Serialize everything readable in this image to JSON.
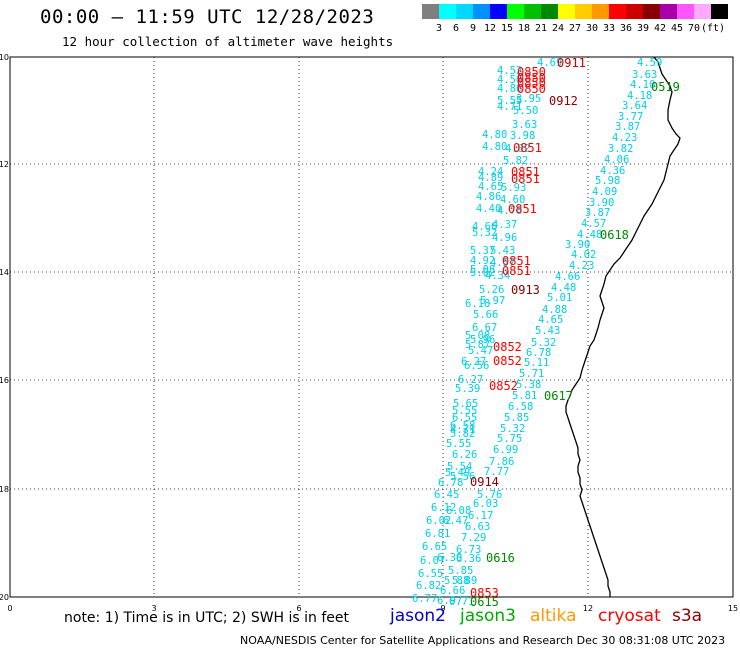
{
  "header": {
    "title": "00:00 – 11:59 UTC 12/28/2023",
    "subtitle": "12 hour collection of altimeter wave heights"
  },
  "legend": {
    "swatches": [
      {
        "color": "#7f7f7f",
        "label": ""
      },
      {
        "color": "#00ffff",
        "label": "3"
      },
      {
        "color": "#00d8ff",
        "label": "6"
      },
      {
        "color": "#0090ff",
        "label": "9"
      },
      {
        "color": "#0000ff",
        "label": "12"
      },
      {
        "color": "#00ff00",
        "label": "15"
      },
      {
        "color": "#00c000",
        "label": "18"
      },
      {
        "color": "#008800",
        "label": "21"
      },
      {
        "color": "#ffff00",
        "label": "24"
      },
      {
        "color": "#ffcc00",
        "label": "27"
      },
      {
        "color": "#ff9900",
        "label": "30"
      },
      {
        "color": "#ff0000",
        "label": "33"
      },
      {
        "color": "#cc0000",
        "label": "36"
      },
      {
        "color": "#880000",
        "label": "39"
      },
      {
        "color": "#aa00aa",
        "label": "42"
      },
      {
        "color": "#ff55ff",
        "label": "45"
      },
      {
        "color": "#ffaaff",
        "label": "70"
      },
      {
        "color": "#000000",
        "label": "(ft)"
      }
    ]
  },
  "axes": {
    "lat_labels": [
      "-10",
      "-12",
      "-14",
      "-16",
      "-18",
      "-20"
    ],
    "lon_labels": [
      "0",
      "3",
      "6",
      "9",
      "12",
      "15"
    ]
  },
  "map_labels": {
    "waves": [
      [
        "4.69",
        537,
        58
      ],
      [
        "4.59",
        637,
        58
      ],
      [
        "4.52",
        497,
        66
      ],
      [
        "3.63",
        632,
        70
      ],
      [
        "4.50",
        497,
        75
      ],
      [
        "4.10",
        630,
        80
      ],
      [
        "4.86",
        497,
        84
      ],
      [
        "4.18",
        627,
        91
      ],
      [
        "5.55",
        497,
        96
      ],
      [
        "3.95",
        516,
        94
      ],
      [
        "3.64",
        622,
        101
      ],
      [
        "4.71",
        497,
        102
      ],
      [
        "5.50",
        513,
        106
      ],
      [
        "3.77",
        618,
        112
      ],
      [
        "3.63",
        512,
        120
      ],
      [
        "3.87",
        615,
        122
      ],
      [
        "4.80",
        482,
        130
      ],
      [
        "3.98",
        510,
        131
      ],
      [
        "4.23",
        612,
        133
      ],
      [
        "4.80",
        482,
        142
      ],
      [
        "4.82",
        505,
        144
      ],
      [
        "3.82",
        608,
        144
      ],
      [
        "5.82",
        503,
        156
      ],
      [
        "4.06",
        604,
        155
      ],
      [
        "4.24",
        478,
        167
      ],
      [
        "4.36",
        600,
        166
      ],
      [
        "4.89",
        478,
        173
      ],
      [
        "5.98",
        595,
        176
      ],
      [
        "4.65",
        478,
        182
      ],
      [
        "5.93",
        501,
        183
      ],
      [
        "4.09",
        592,
        187
      ],
      [
        "4.86",
        476,
        192
      ],
      [
        "4.60",
        500,
        195
      ],
      [
        "3.90",
        589,
        198
      ],
      [
        "4.40",
        476,
        204
      ],
      [
        "4.78",
        497,
        206
      ],
      [
        "3.87",
        585,
        208
      ],
      [
        "4.37",
        492,
        220
      ],
      [
        "4.57",
        581,
        219
      ],
      [
        "4.66",
        472,
        222
      ],
      [
        "5.32",
        472,
        228
      ],
      [
        "4.96",
        492,
        233
      ],
      [
        "4.48",
        577,
        230
      ],
      [
        "4.02",
        571,
        250
      ],
      [
        "3.90",
        565,
        240
      ],
      [
        "5.37",
        470,
        246
      ],
      [
        "5.43",
        490,
        246
      ],
      [
        "4.23",
        569,
        261
      ],
      [
        "4.92",
        470,
        256
      ],
      [
        "4.57",
        490,
        258
      ],
      [
        "5.08",
        470,
        265
      ],
      [
        "5.02",
        470,
        268
      ],
      [
        "4.34",
        485,
        271
      ],
      [
        "4.66",
        555,
        272
      ],
      [
        "5.26",
        479,
        285
      ],
      [
        "4.48",
        551,
        283
      ],
      [
        "5.97",
        480,
        296
      ],
      [
        "5.01",
        547,
        293
      ],
      [
        "6.18",
        465,
        299
      ],
      [
        "4.88",
        542,
        305
      ],
      [
        "5.66",
        473,
        310
      ],
      [
        "4.65",
        538,
        315
      ],
      [
        "6.67",
        472,
        323
      ],
      [
        "5.43",
        535,
        326
      ],
      [
        "5.08",
        465,
        331
      ],
      [
        "5.32",
        531,
        338
      ],
      [
        "5.96",
        470,
        335
      ],
      [
        "5.87",
        465,
        340
      ],
      [
        "6.78",
        526,
        348
      ],
      [
        "5.47",
        468,
        346
      ],
      [
        "6.27",
        461,
        357
      ],
      [
        "5.11",
        524,
        358
      ],
      [
        "6.56",
        464,
        361
      ],
      [
        "5.71",
        519,
        369
      ],
      [
        "6.27",
        458,
        375
      ],
      [
        "5.38",
        516,
        380
      ],
      [
        "5.39",
        455,
        384
      ],
      [
        "5.81",
        512,
        391
      ],
      [
        "5.65",
        453,
        399
      ],
      [
        "6.58",
        508,
        402
      ],
      [
        "5.55",
        452,
        406
      ],
      [
        "5.85",
        504,
        413
      ],
      [
        "6.55",
        452,
        413
      ],
      [
        "6.58",
        450,
        421
      ],
      [
        "5.32",
        500,
        424
      ],
      [
        "4.71",
        450,
        425
      ],
      [
        "5.82",
        450,
        429
      ],
      [
        "5.75",
        497,
        434
      ],
      [
        "5.55",
        446,
        439
      ],
      [
        "6.99",
        493,
        445
      ],
      [
        "6.26",
        452,
        450
      ],
      [
        "7.86",
        489,
        457
      ],
      [
        "5.54",
        447,
        462
      ],
      [
        "7.77",
        484,
        467
      ],
      [
        "5.49",
        445,
        468
      ],
      [
        "5.56",
        450,
        472
      ],
      [
        "6.78",
        438,
        478
      ],
      [
        "6.45",
        434,
        490
      ],
      [
        "5.76",
        477,
        490
      ],
      [
        "6.03",
        473,
        499
      ],
      [
        "6.12",
        431,
        503
      ],
      [
        "6.08",
        446,
        506
      ],
      [
        "6.17",
        468,
        511
      ],
      [
        "6.02",
        426,
        516
      ],
      [
        "6.47",
        443,
        516
      ],
      [
        "6.63",
        465,
        522
      ],
      [
        "6.81",
        425,
        529
      ],
      [
        "7.29",
        461,
        533
      ],
      [
        "6.65",
        422,
        542
      ],
      [
        "6.73",
        456,
        545
      ],
      [
        "6.07",
        420,
        556
      ],
      [
        "6.30",
        437,
        553
      ],
      [
        "6.36",
        456,
        554
      ],
      [
        "5.85",
        448,
        566
      ],
      [
        "6.55",
        418,
        569
      ],
      [
        "5.88",
        444,
        576
      ],
      [
        "5.89",
        452,
        576
      ],
      [
        "6.82",
        416,
        581
      ],
      [
        "6.66",
        440,
        586
      ],
      [
        "6.77",
        412,
        594
      ],
      [
        "6.97",
        437,
        596
      ],
      [
        "6.71",
        449,
        597
      ]
    ],
    "passes": [
      [
        "0911",
        557,
        58,
        "#cc0000"
      ],
      [
        "0519",
        651,
        82,
        "#008800"
      ],
      [
        "0850",
        517,
        67,
        "#ff0000"
      ],
      [
        "0850",
        517,
        73,
        "#ff0000"
      ],
      [
        "0850",
        517,
        78,
        "#ff0000"
      ],
      [
        "0850",
        517,
        84,
        "#ff0000"
      ],
      [
        "0912",
        549,
        96,
        "#880000"
      ],
      [
        "0851",
        513,
        143,
        "#ff0000"
      ],
      [
        "0851",
        511,
        167,
        "#ff0000"
      ],
      [
        "0851",
        511,
        174,
        "#ff0000"
      ],
      [
        "0851",
        508,
        204,
        "#ff0000"
      ],
      [
        "0618",
        600,
        230,
        "#008800"
      ],
      [
        "0851",
        502,
        256,
        "#ff0000"
      ],
      [
        "0851",
        502,
        266,
        "#ff0000"
      ],
      [
        "0913",
        511,
        285,
        "#880000"
      ],
      [
        "0852",
        493,
        342,
        "#ff0000"
      ],
      [
        "0852",
        493,
        356,
        "#ff0000"
      ],
      [
        "0852",
        489,
        381,
        "#ff0000"
      ],
      [
        "0617",
        544,
        391,
        "#008800"
      ],
      [
        "0914",
        470,
        477,
        "#880000"
      ],
      [
        "0616",
        486,
        553,
        "#008800"
      ],
      [
        "0853",
        470,
        588,
        "#ff0000"
      ],
      [
        "0615",
        470,
        597,
        "#008800"
      ]
    ]
  },
  "footer": {
    "note": "note: 1) Time is in UTC; 2) SWH is in feet",
    "satellites": [
      {
        "name": "jason2",
        "color": "#0000cc"
      },
      {
        "name": "jason3",
        "color": "#00aa00"
      },
      {
        "name": "altika",
        "color": "#ff9900"
      },
      {
        "name": "cryosat",
        "color": "#ff0000"
      },
      {
        "name": "s3a",
        "color": "#880000"
      }
    ],
    "credit": "NOAA/NESDIS Center for Satellite Applications and Research   Dec 30 08:31:08 UTC 2023"
  }
}
